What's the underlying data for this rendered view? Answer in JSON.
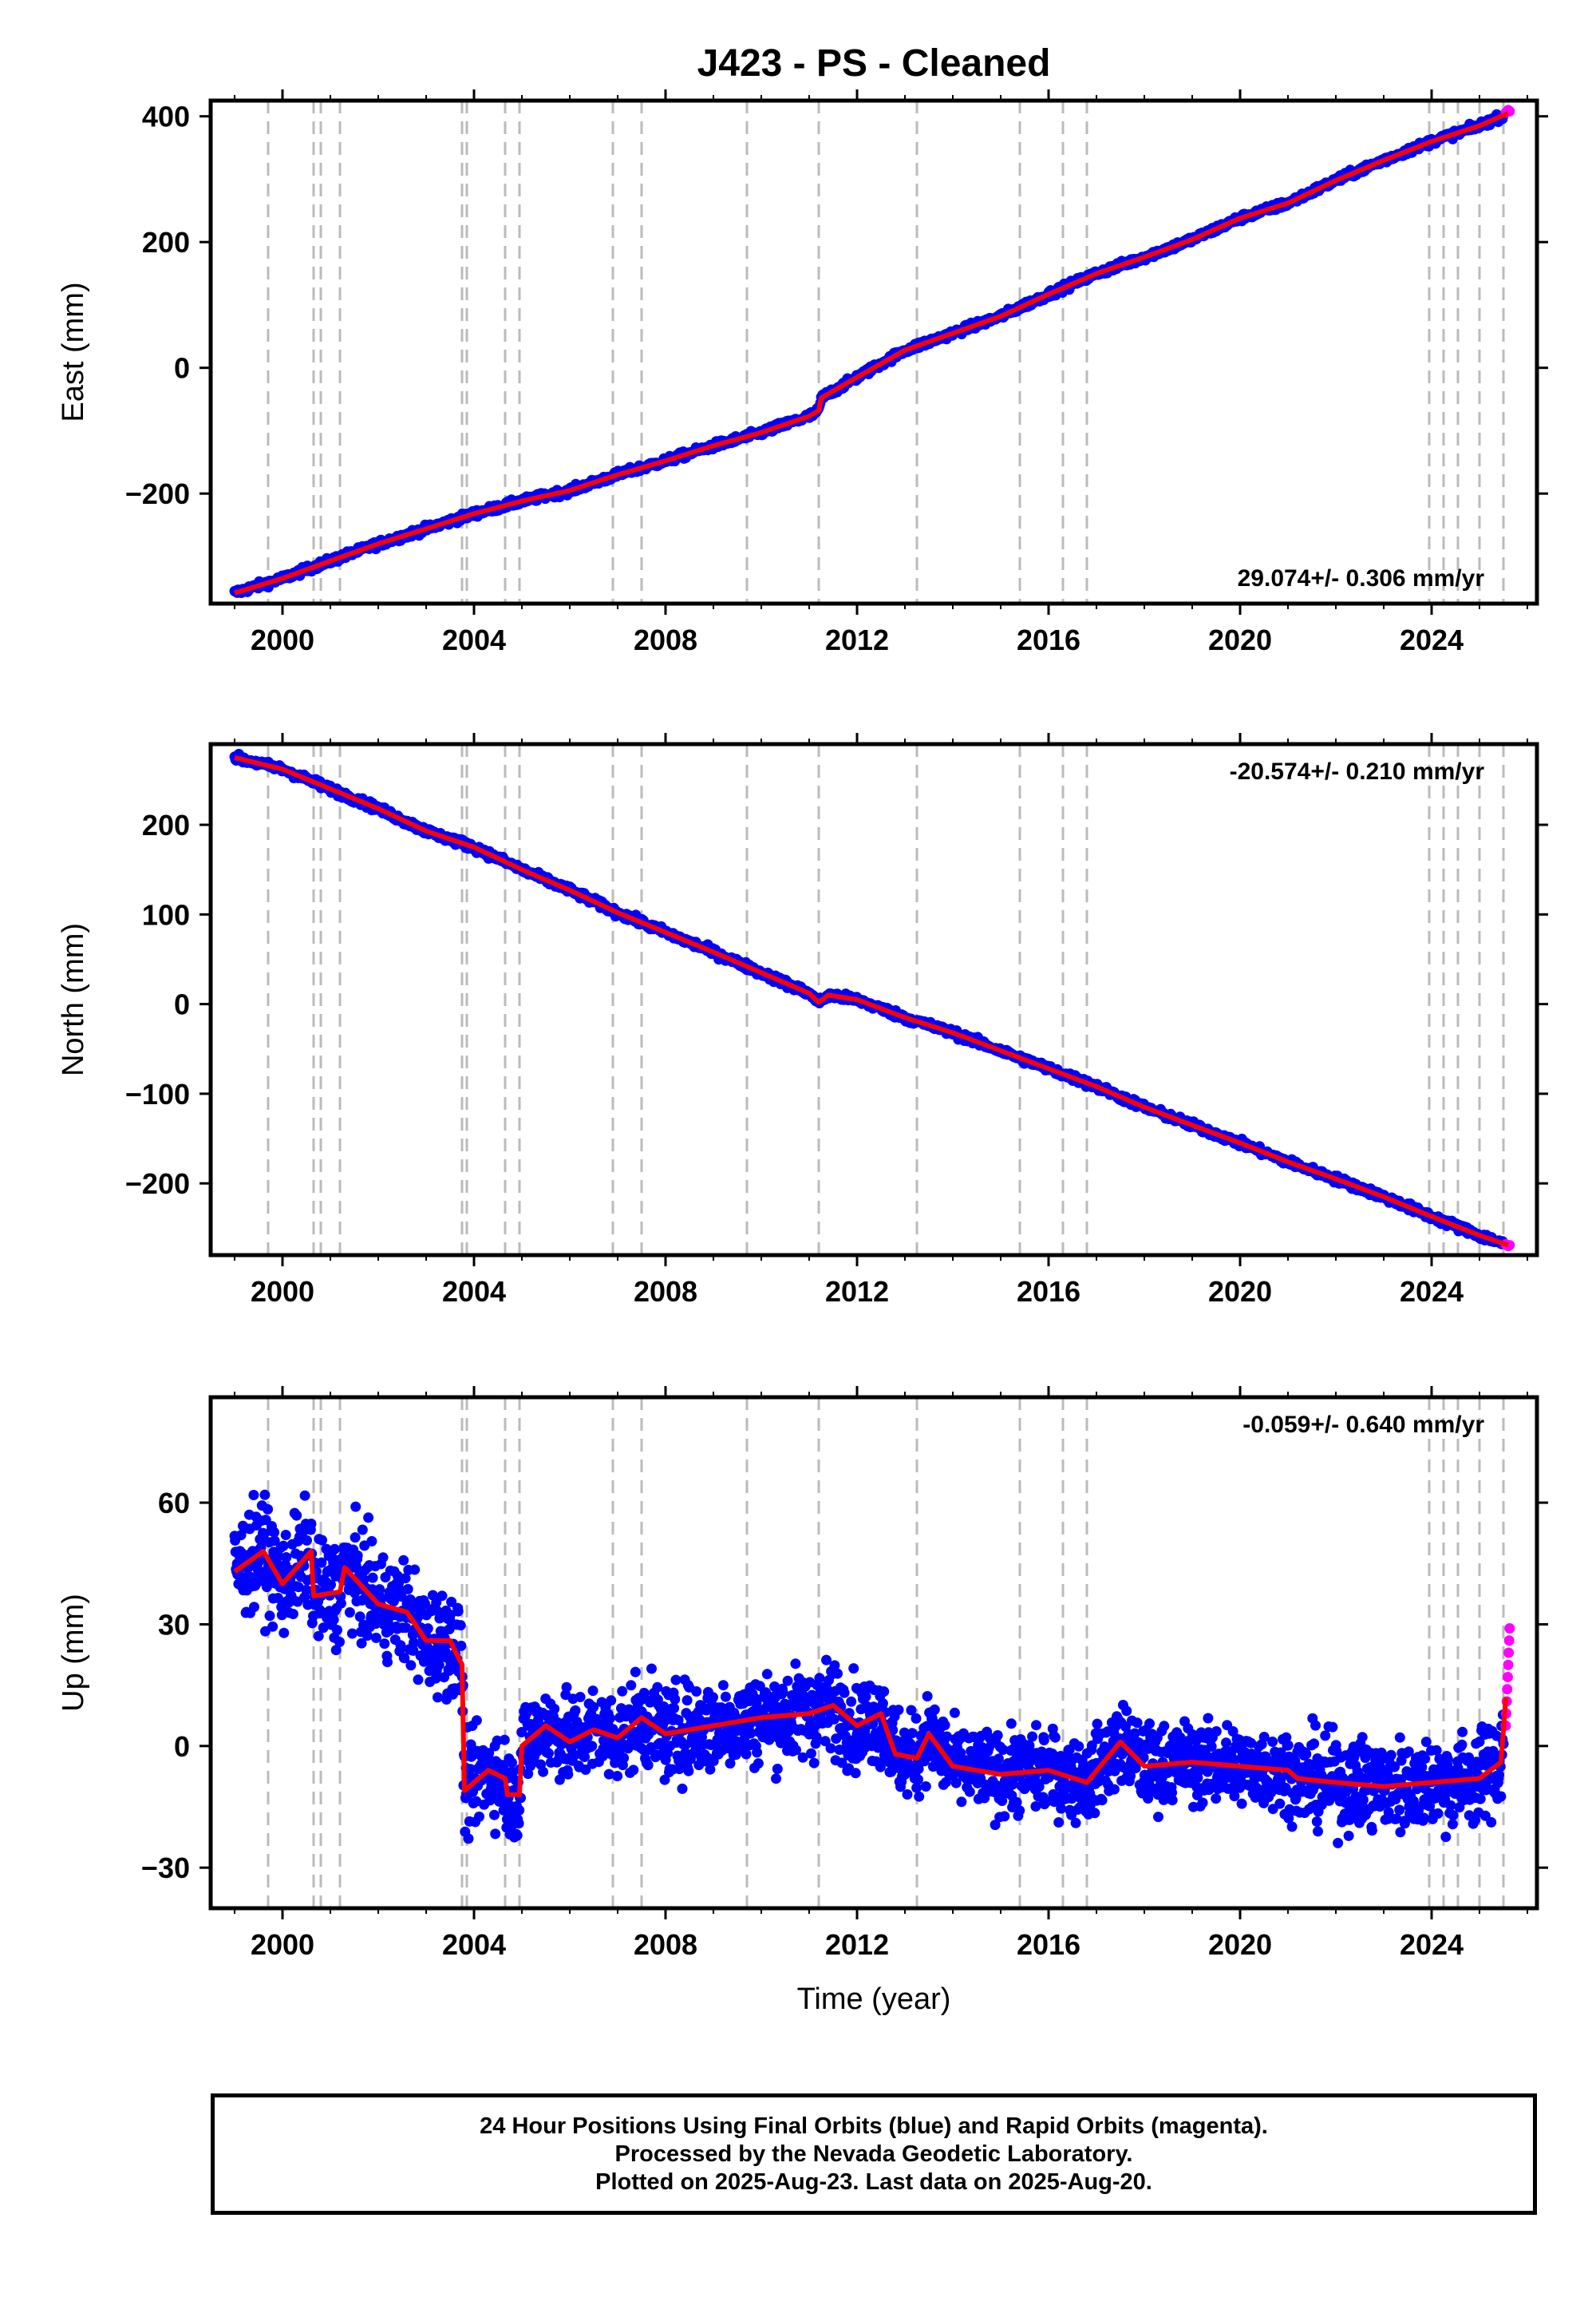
{
  "title": "J423  - PS - Cleaned",
  "xlabel": "Time (year)",
  "colors": {
    "final": "#0000ff",
    "rapid": "#ff00ff",
    "model": "#ff0000",
    "events": "#bbbbbb",
    "axis": "#000000"
  },
  "footer": {
    "line1": "24 Hour Positions Using Final Orbits (blue) and Rapid Orbits (magenta).",
    "line2": "Processed by the Nevada Geodetic Laboratory.",
    "line3": "Plotted on 2025-Aug-23. Last data on 2025-Aug-20."
  },
  "chart_data": [
    {
      "type": "scatter",
      "panel": "east",
      "ylabel": "East (mm)",
      "rate_label": "29.074+/- 0.306 mm/yr",
      "rate_label_position": "bottom-right",
      "xlim": [
        1998.5,
        2026.2
      ],
      "ylim": [
        -375,
        425
      ],
      "xticks": [
        2000,
        2004,
        2008,
        2012,
        2016,
        2020,
        2024
      ],
      "yticks": [
        -200,
        0,
        200,
        400
      ],
      "ytick_labels": [
        "−200",
        "0",
        "200",
        "400"
      ],
      "event_lines": [
        1999.7,
        2000.65,
        2000.8,
        2001.2,
        2003.75,
        2003.85,
        2004.65,
        2004.95,
        2006.9,
        2007.5,
        2009.7,
        2011.2,
        2013.25,
        2015.4,
        2016.3,
        2016.8,
        2023.95,
        2024.25,
        2024.55,
        2025.0,
        2025.5
      ],
      "model_points": [
        {
          "x": 1999.0,
          "y": -358
        },
        {
          "x": 2000.0,
          "y": -335
        },
        {
          "x": 2001.0,
          "y": -307
        },
        {
          "x": 2002.0,
          "y": -280
        },
        {
          "x": 2003.0,
          "y": -256
        },
        {
          "x": 2004.0,
          "y": -232
        },
        {
          "x": 2005.0,
          "y": -212
        },
        {
          "x": 2006.0,
          "y": -195
        },
        {
          "x": 2007.0,
          "y": -170
        },
        {
          "x": 2008.0,
          "y": -148
        },
        {
          "x": 2009.0,
          "y": -124
        },
        {
          "x": 2010.0,
          "y": -103
        },
        {
          "x": 2011.0,
          "y": -77
        },
        {
          "x": 2011.2,
          "y": -68
        },
        {
          "x": 2011.25,
          "y": -48
        },
        {
          "x": 2012.0,
          "y": -15
        },
        {
          "x": 2013.0,
          "y": 28
        },
        {
          "x": 2014.0,
          "y": 55
        },
        {
          "x": 2015.0,
          "y": 82
        },
        {
          "x": 2016.0,
          "y": 117
        },
        {
          "x": 2017.0,
          "y": 150
        },
        {
          "x": 2018.0,
          "y": 176
        },
        {
          "x": 2019.0,
          "y": 204
        },
        {
          "x": 2020.0,
          "y": 238
        },
        {
          "x": 2021.0,
          "y": 262
        },
        {
          "x": 2022.0,
          "y": 298
        },
        {
          "x": 2023.0,
          "y": 330
        },
        {
          "x": 2024.0,
          "y": 360
        },
        {
          "x": 2025.0,
          "y": 385
        },
        {
          "x": 2025.6,
          "y": 405
        }
      ],
      "final_scatter": {
        "x_start": 1999.0,
        "x_end": 2025.5,
        "noise_mm": 4
      },
      "rapid_points": [
        {
          "x": 2025.55,
          "y": 406
        },
        {
          "x": 2025.6,
          "y": 410
        },
        {
          "x": 2025.63,
          "y": 408
        }
      ]
    },
    {
      "type": "scatter",
      "panel": "north",
      "ylabel": "North (mm)",
      "rate_label": "-20.574+/- 0.210 mm/yr",
      "rate_label_position": "top-right",
      "xlim": [
        1998.5,
        2026.2
      ],
      "ylim": [
        -280,
        290
      ],
      "xticks": [
        2000,
        2004,
        2008,
        2012,
        2016,
        2020,
        2024
      ],
      "yticks": [
        -200,
        -100,
        0,
        100,
        200
      ],
      "ytick_labels": [
        "−200",
        "−100",
        "0",
        "100",
        "200"
      ],
      "event_lines": [
        1999.7,
        2000.65,
        2000.8,
        2001.2,
        2003.75,
        2003.85,
        2004.65,
        2004.95,
        2006.9,
        2007.5,
        2009.7,
        2011.2,
        2013.25,
        2015.4,
        2016.3,
        2016.8,
        2023.95,
        2024.25,
        2024.55,
        2025.0,
        2025.5
      ],
      "model_points": [
        {
          "x": 1999.0,
          "y": 275
        },
        {
          "x": 2000.0,
          "y": 262
        },
        {
          "x": 2001.0,
          "y": 240
        },
        {
          "x": 2002.0,
          "y": 218
        },
        {
          "x": 2003.0,
          "y": 193
        },
        {
          "x": 2004.0,
          "y": 175
        },
        {
          "x": 2005.0,
          "y": 150
        },
        {
          "x": 2006.0,
          "y": 127
        },
        {
          "x": 2007.0,
          "y": 102
        },
        {
          "x": 2008.0,
          "y": 80
        },
        {
          "x": 2009.0,
          "y": 58
        },
        {
          "x": 2010.0,
          "y": 35
        },
        {
          "x": 2011.0,
          "y": 12
        },
        {
          "x": 2011.2,
          "y": 2
        },
        {
          "x": 2011.4,
          "y": 10
        },
        {
          "x": 2012.0,
          "y": 5
        },
        {
          "x": 2013.0,
          "y": -15
        },
        {
          "x": 2014.0,
          "y": -32
        },
        {
          "x": 2015.0,
          "y": -52
        },
        {
          "x": 2016.0,
          "y": -72
        },
        {
          "x": 2017.0,
          "y": -92
        },
        {
          "x": 2018.0,
          "y": -115
        },
        {
          "x": 2019.0,
          "y": -135
        },
        {
          "x": 2020.0,
          "y": -155
        },
        {
          "x": 2021.0,
          "y": -176
        },
        {
          "x": 2022.0,
          "y": -195
        },
        {
          "x": 2023.0,
          "y": -215
        },
        {
          "x": 2024.0,
          "y": -237
        },
        {
          "x": 2025.0,
          "y": -258
        },
        {
          "x": 2025.6,
          "y": -269
        }
      ],
      "final_scatter": {
        "x_start": 1999.0,
        "x_end": 2025.5,
        "noise_mm": 3
      },
      "rapid_points": [
        {
          "x": 2025.55,
          "y": -268
        },
        {
          "x": 2025.6,
          "y": -270
        },
        {
          "x": 2025.63,
          "y": -269
        }
      ]
    },
    {
      "type": "scatter",
      "panel": "up",
      "ylabel": "Up (mm)",
      "rate_label": "-0.059+/- 0.640 mm/yr",
      "rate_label_position": "top-right",
      "xlim": [
        1998.5,
        2026.2
      ],
      "ylim": [
        -40,
        86
      ],
      "xticks": [
        2000,
        2004,
        2008,
        2012,
        2016,
        2020,
        2024
      ],
      "yticks": [
        -30,
        0,
        30,
        60
      ],
      "ytick_labels": [
        "−30",
        "0",
        "30",
        "60"
      ],
      "event_lines": [
        1999.7,
        2000.65,
        2000.8,
        2001.2,
        2003.75,
        2003.85,
        2004.65,
        2004.95,
        2006.9,
        2007.5,
        2009.7,
        2011.2,
        2013.25,
        2015.4,
        2016.3,
        2016.8,
        2023.95,
        2024.25,
        2024.55,
        2025.0,
        2025.5
      ],
      "model_points": [
        {
          "x": 1999.0,
          "y": 43
        },
        {
          "x": 1999.6,
          "y": 48
        },
        {
          "x": 2000.0,
          "y": 40
        },
        {
          "x": 2000.6,
          "y": 48
        },
        {
          "x": 2000.65,
          "y": 37
        },
        {
          "x": 2001.2,
          "y": 38
        },
        {
          "x": 2001.3,
          "y": 44
        },
        {
          "x": 2002.0,
          "y": 35
        },
        {
          "x": 2002.6,
          "y": 33
        },
        {
          "x": 2003.0,
          "y": 26
        },
        {
          "x": 2003.5,
          "y": 26
        },
        {
          "x": 2003.75,
          "y": 20
        },
        {
          "x": 2003.8,
          "y": -11
        },
        {
          "x": 2004.3,
          "y": -6
        },
        {
          "x": 2004.65,
          "y": -8
        },
        {
          "x": 2004.7,
          "y": -12
        },
        {
          "x": 2004.95,
          "y": -12
        },
        {
          "x": 2005.0,
          "y": 0
        },
        {
          "x": 2005.5,
          "y": 5
        },
        {
          "x": 2006.0,
          "y": 1
        },
        {
          "x": 2006.5,
          "y": 4
        },
        {
          "x": 2007.0,
          "y": 2
        },
        {
          "x": 2007.5,
          "y": 7
        },
        {
          "x": 2008.0,
          "y": 3
        },
        {
          "x": 2009.0,
          "y": 5
        },
        {
          "x": 2010.0,
          "y": 7
        },
        {
          "x": 2011.0,
          "y": 8
        },
        {
          "x": 2011.5,
          "y": 10
        },
        {
          "x": 2012.0,
          "y": 5
        },
        {
          "x": 2012.5,
          "y": 8
        },
        {
          "x": 2012.8,
          "y": -2
        },
        {
          "x": 2013.25,
          "y": -3
        },
        {
          "x": 2013.5,
          "y": 3
        },
        {
          "x": 2014.0,
          "y": -5
        },
        {
          "x": 2015.0,
          "y": -7
        },
        {
          "x": 2016.0,
          "y": -6
        },
        {
          "x": 2016.8,
          "y": -9
        },
        {
          "x": 2017.5,
          "y": 1
        },
        {
          "x": 2018.0,
          "y": -5
        },
        {
          "x": 2019.0,
          "y": -4
        },
        {
          "x": 2020.0,
          "y": -5
        },
        {
          "x": 2021.0,
          "y": -6
        },
        {
          "x": 2021.2,
          "y": -8
        },
        {
          "x": 2022.0,
          "y": -9
        },
        {
          "x": 2023.0,
          "y": -10
        },
        {
          "x": 2024.0,
          "y": -9
        },
        {
          "x": 2025.0,
          "y": -8
        },
        {
          "x": 2025.45,
          "y": -4
        },
        {
          "x": 2025.55,
          "y": 12
        }
      ],
      "final_scatter": {
        "x_start": 1999.0,
        "x_end": 2025.5,
        "noise_mm": 8
      },
      "rapid_points": [
        {
          "x": 2025.55,
          "y": 5
        },
        {
          "x": 2025.56,
          "y": 8
        },
        {
          "x": 2025.57,
          "y": 11
        },
        {
          "x": 2025.58,
          "y": 14
        },
        {
          "x": 2025.59,
          "y": 17
        },
        {
          "x": 2025.6,
          "y": 20
        },
        {
          "x": 2025.61,
          "y": 23
        },
        {
          "x": 2025.62,
          "y": 26
        },
        {
          "x": 2025.63,
          "y": 29
        }
      ]
    }
  ]
}
